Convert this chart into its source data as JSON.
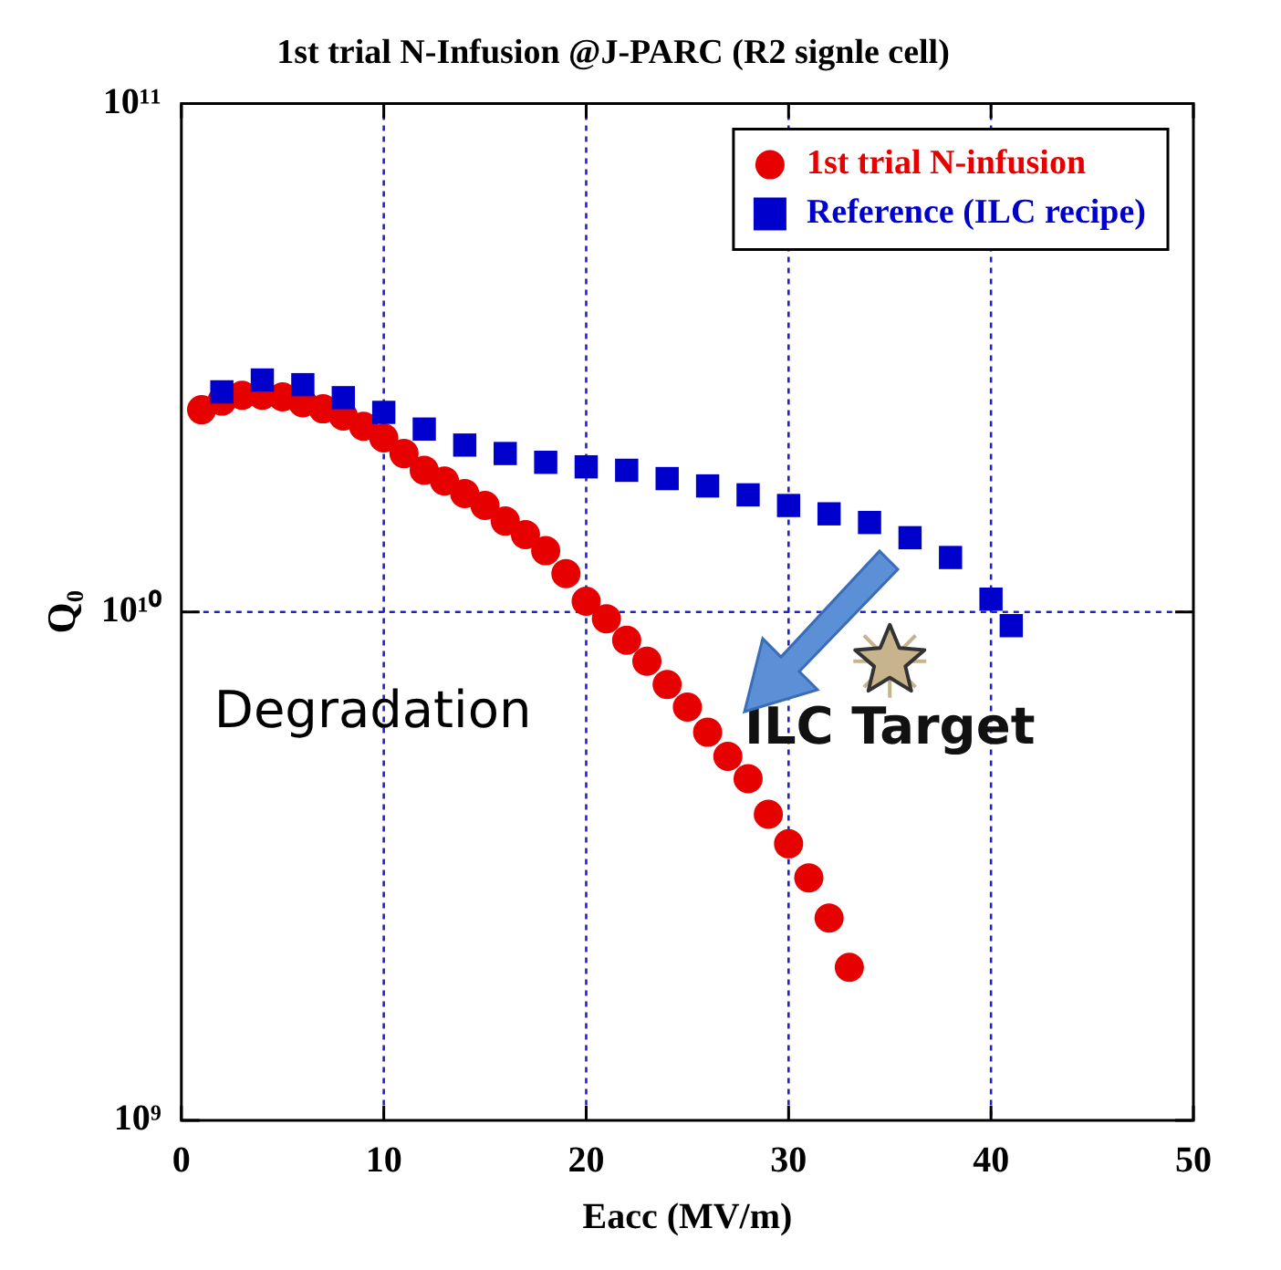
{
  "chart_data": {
    "type": "scatter",
    "title": "1st trial N-Infusion @J-PARC (R2 signle cell)",
    "xlabel": "Eacc (MV/m)",
    "ylabel": "Q₀",
    "xlim": [
      0,
      50
    ],
    "xticks": [
      0,
      10,
      20,
      30,
      40,
      50
    ],
    "ylim": [
      1000000000.0,
      100000000000.0
    ],
    "yticks": [
      {
        "value": 1000000000.0,
        "label": "10⁹"
      },
      {
        "value": 10000000000.0,
        "label": "10¹⁰"
      },
      {
        "value": 100000000000.0,
        "label": "10¹¹"
      }
    ],
    "log": "y",
    "grid": true,
    "legend": "top right",
    "series": [
      {
        "name": "1st trial N-infusion",
        "color": "#e60000",
        "marker": "circle",
        "x": [
          1,
          2,
          3,
          4,
          5,
          6,
          7,
          8,
          9,
          10,
          11,
          12,
          13,
          14,
          15,
          16,
          17,
          18,
          19,
          20,
          21,
          22,
          23,
          24,
          25,
          26,
          27,
          28,
          29,
          30,
          31,
          32,
          33
        ],
        "values": [
          25000000000.0,
          26000000000.0,
          26700000000.0,
          26700000000.0,
          26500000000.0,
          25800000000.0,
          25100000000.0,
          24300000000.0,
          23200000000.0,
          22000000000.0,
          20500000000.0,
          19000000000.0,
          18100000000.0,
          17100000000.0,
          16200000000.0,
          15100000000.0,
          14200000000.0,
          13200000000.0,
          11900000000.0,
          10500000000.0,
          9700000000.0,
          8800000000.0,
          8000000000.0,
          7200000000.0,
          6500000000.0,
          5800000000.0,
          5200000000.0,
          4700000000.0,
          4000000000.0,
          3500000000.0,
          3000000000.0,
          2500000000.0,
          2000000000.0
        ]
      },
      {
        "name": "Reference (ILC recipe)",
        "color": "#0000cc",
        "marker": "square",
        "x": [
          2,
          4,
          6,
          8,
          10,
          12,
          14,
          16,
          18,
          20,
          22,
          24,
          26,
          28,
          30,
          32,
          34,
          36,
          38,
          40,
          41
        ],
        "values": [
          27100000000.0,
          28600000000.0,
          28000000000.0,
          26400000000.0,
          24700000000.0,
          22900000000.0,
          21300000000.0,
          20500000000.0,
          19700000000.0,
          19300000000.0,
          19000000000.0,
          18300000000.0,
          17700000000.0,
          17000000000.0,
          16200000000.0,
          15600000000.0,
          15000000000.0,
          14000000000.0,
          12800000000.0,
          10600000000.0,
          9400000000.0
        ]
      },
      {
        "color": "#c8b48c",
        "marker": "star",
        "x": [
          35
        ],
        "values": [
          8000000000.0
        ]
      }
    ],
    "annotations": [
      "Degradation",
      {
        "text": "ILC Target",
        "x": 35,
        "y": 8000000000.0
      }
    ]
  }
}
